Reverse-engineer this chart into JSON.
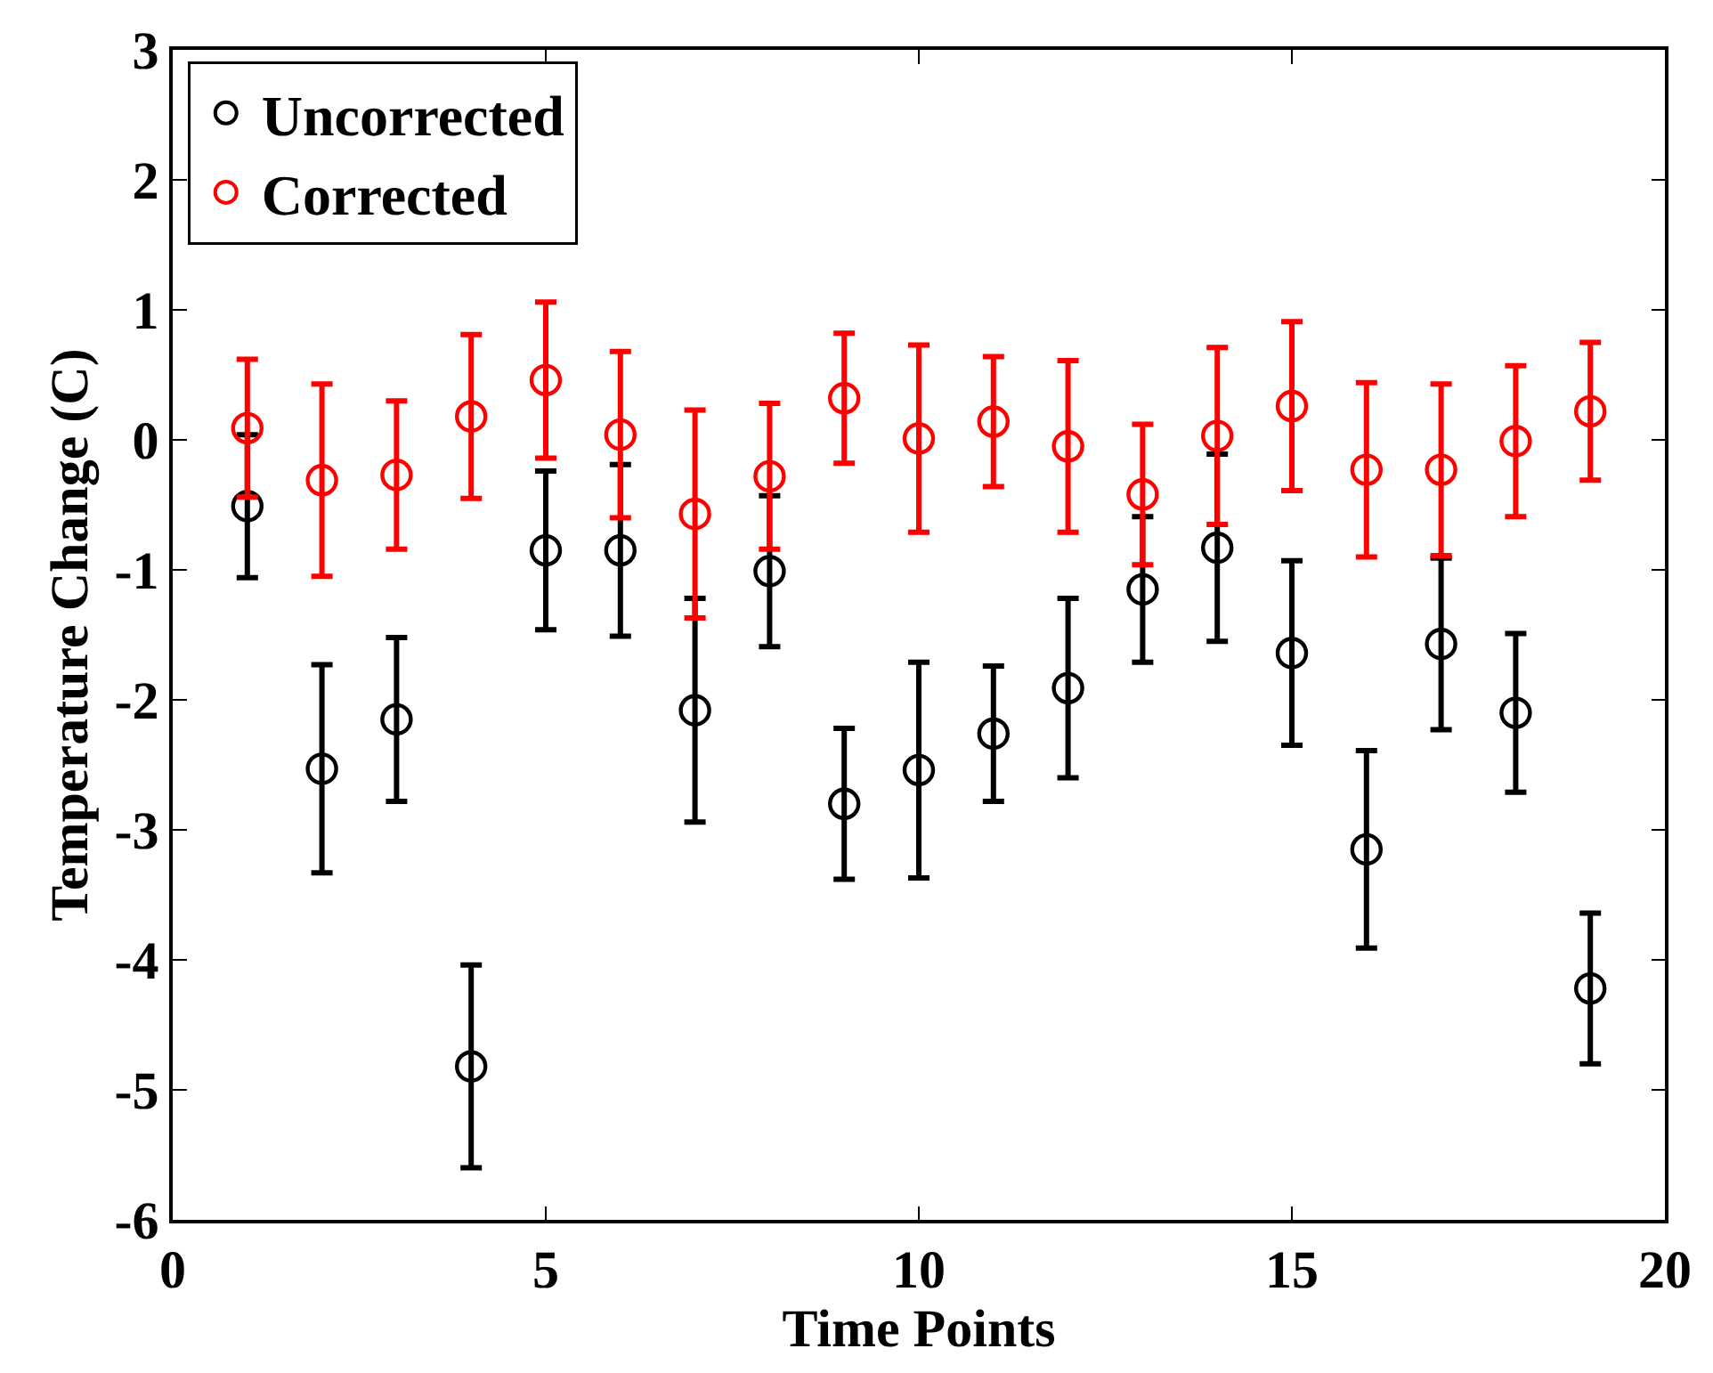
{
  "chart_data": {
    "type": "scatter",
    "xlabel": "Time Points",
    "ylabel": "Temperature Change (C)",
    "x": [
      1,
      2,
      3,
      4,
      5,
      6,
      7,
      8,
      9,
      10,
      11,
      12,
      13,
      14,
      15,
      16,
      17,
      18,
      19
    ],
    "series": [
      {
        "name": "Uncorrected",
        "color": "#000000",
        "values": [
          -0.51,
          -2.53,
          -2.15,
          -4.82,
          -0.85,
          -0.85,
          -2.08,
          -1.01,
          -2.8,
          -2.54,
          -2.26,
          -1.91,
          -1.15,
          -0.83,
          -1.64,
          -3.15,
          -1.57,
          -2.1,
          -4.22
        ],
        "errors": [
          0.55,
          0.8,
          0.63,
          0.78,
          0.61,
          0.66,
          0.86,
          0.58,
          0.58,
          0.83,
          0.52,
          0.69,
          0.56,
          0.72,
          0.71,
          0.76,
          0.66,
          0.61,
          0.58
        ]
      },
      {
        "name": "Corrected",
        "color": "#ff0000",
        "values": [
          0.09,
          -0.31,
          -0.27,
          0.18,
          0.46,
          0.04,
          -0.57,
          -0.28,
          0.32,
          0.01,
          0.14,
          -0.05,
          -0.42,
          0.03,
          0.26,
          -0.23,
          -0.23,
          -0.01,
          0.22
        ],
        "errors": [
          0.53,
          0.74,
          0.57,
          0.63,
          0.6,
          0.64,
          0.8,
          0.56,
          0.5,
          0.72,
          0.5,
          0.66,
          0.54,
          0.68,
          0.65,
          0.67,
          0.66,
          0.58,
          0.53
        ]
      }
    ],
    "xlim": [
      0,
      20
    ],
    "xticks": [
      0,
      5,
      10,
      15,
      20
    ],
    "ylim": [
      -6,
      3
    ],
    "yticks": [
      -6,
      -5,
      -4,
      -3,
      -2,
      -1,
      0,
      1,
      2,
      3
    ],
    "legend": "top left",
    "marker": "circle"
  }
}
